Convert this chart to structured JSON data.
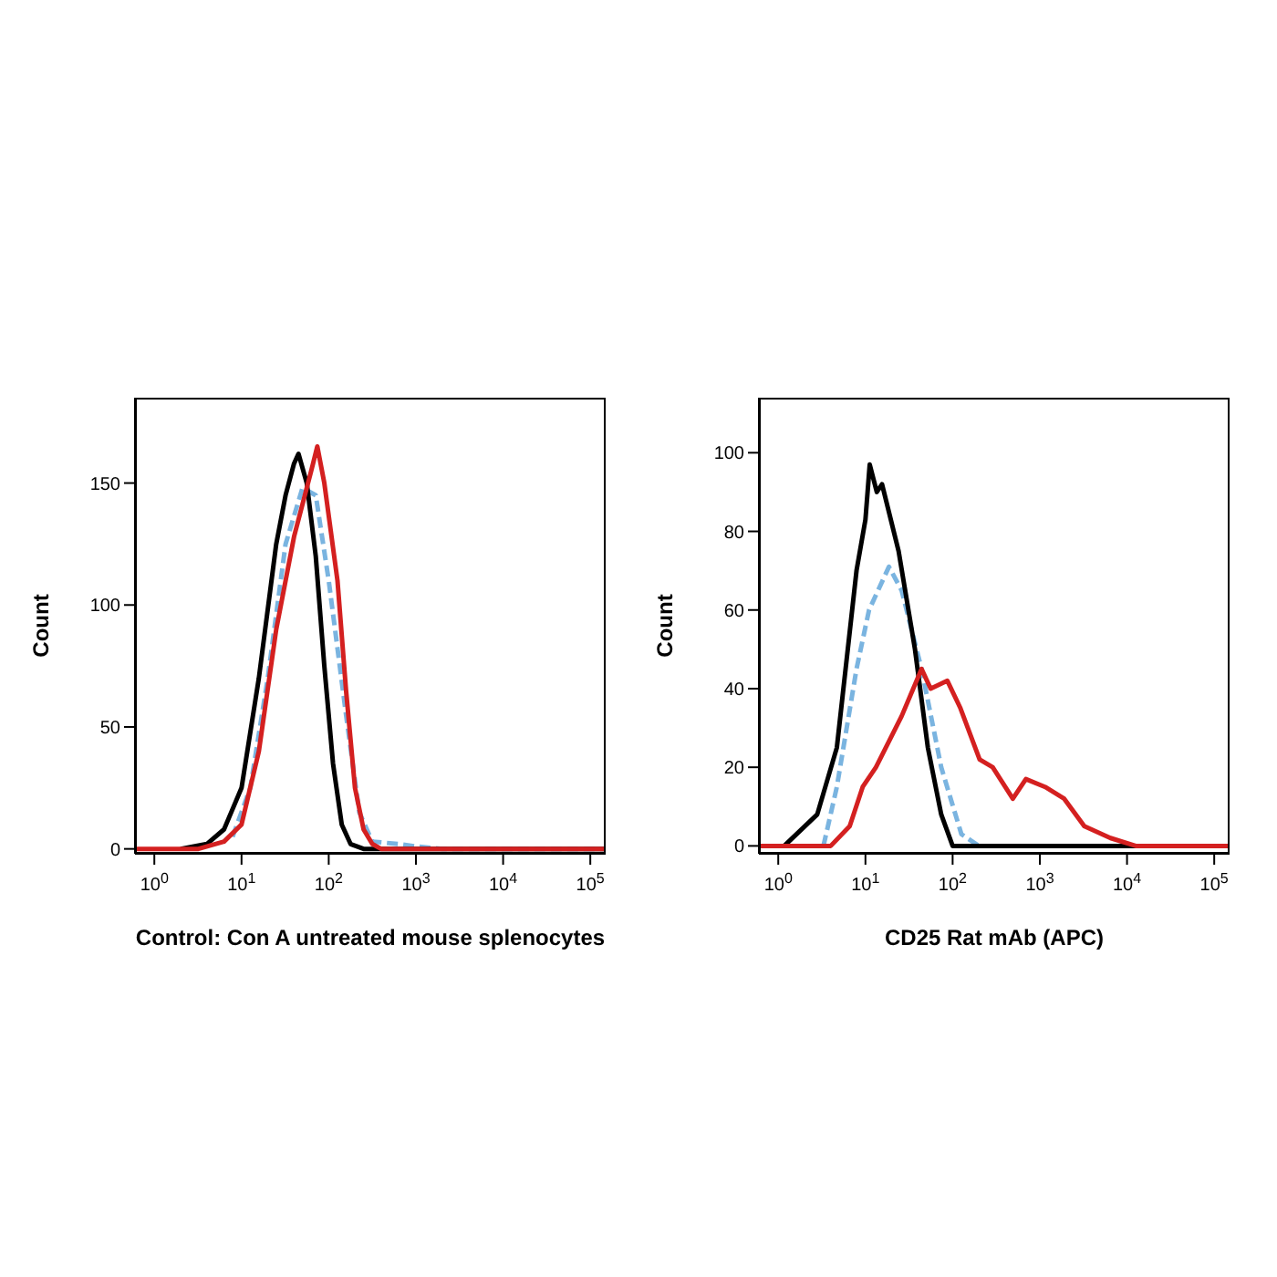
{
  "chart_data": [
    {
      "type": "line",
      "xlabel": "Control: Con A untreated mouse splenocytes",
      "ylabel": "Count",
      "log": "x",
      "marker": "none",
      "xlim": [
        0.6,
        150000
      ],
      "xticks": [
        {
          "value": 1,
          "label": "10$^{0}$"
        },
        {
          "value": 10,
          "label": "10$^{1}$"
        },
        {
          "value": 100,
          "label": "10$^{2}$"
        },
        {
          "value": 1000,
          "label": "10$^{3}$"
        },
        {
          "value": 10000,
          "label": "10$^{4}$"
        },
        {
          "value": 100000,
          "label": "10$^{5}$"
        }
      ],
      "ylim": [
        -2,
        185
      ],
      "yticks": [
        0,
        50,
        100,
        150
      ],
      "series": [
        {
          "color": "#7ab4e0",
          "line_style": "dashed",
          "x": [
            7.9,
            12.6,
            20,
            32,
            50,
            71,
            100,
            158,
            224,
            316,
            631,
            1000,
            1995,
            148000
          ],
          "values": [
            5,
            25,
            70,
            125,
            148,
            145,
            110,
            55,
            15,
            3,
            2,
            1,
            0,
            0
          ]
        },
        {
          "color": "#000000",
          "line_style": "solid",
          "x": [
            2,
            4,
            6.3,
            10,
            15.8,
            25,
            32,
            40,
            45,
            56,
            71,
            89,
            112,
            141,
            178,
            251,
            148000
          ],
          "values": [
            0,
            2,
            8,
            25,
            70,
            125,
            145,
            158,
            162,
            150,
            120,
            75,
            35,
            10,
            2,
            0,
            0
          ]
        },
        {
          "color": "#d42020",
          "line_style": "solid",
          "x": [
            0.6,
            3.2,
            6.3,
            10,
            15.8,
            25,
            40,
            63,
            74,
            89,
            126,
            158,
            200,
            251,
            316,
            398,
            148000
          ],
          "values": [
            0,
            0,
            3,
            10,
            40,
            90,
            128,
            155,
            165,
            150,
            110,
            65,
            25,
            8,
            2,
            0,
            0
          ]
        }
      ]
    },
    {
      "type": "line",
      "xlabel": "CD25 Rat mAb (APC)",
      "ylabel": "Count",
      "log": "x",
      "marker": "none",
      "xlim": [
        0.6,
        150000
      ],
      "xticks": [
        {
          "value": 1,
          "label": "10$^{0}$"
        },
        {
          "value": 10,
          "label": "10$^{1}$"
        },
        {
          "value": 100,
          "label": "10$^{2}$"
        },
        {
          "value": 1000,
          "label": "10$^{3}$"
        },
        {
          "value": 10000,
          "label": "10$^{4}$"
        },
        {
          "value": 100000,
          "label": "10$^{5}$"
        }
      ],
      "ylim": [
        -2,
        114
      ],
      "yticks": [
        0,
        20,
        40,
        60,
        80,
        100
      ],
      "series": [
        {
          "color": "#7ab4e0",
          "line_style": "dashed",
          "x": [
            3.3,
            4.7,
            7.9,
            11,
            18.6,
            26,
            44,
            74,
            126,
            200,
            148000
          ],
          "values": [
            0,
            15,
            45,
            60,
            71,
            65,
            45,
            20,
            3,
            0,
            0
          ]
        },
        {
          "color": "#000000",
          "line_style": "solid",
          "x": [
            0.6,
            1.17,
            2.8,
            4.7,
            7.9,
            10,
            11.2,
            13.5,
            15.5,
            24,
            37,
            52,
            74,
            100,
            148000
          ],
          "values": [
            0,
            0,
            8,
            25,
            70,
            83,
            97,
            90,
            92,
            75,
            50,
            25,
            8,
            0,
            0
          ]
        },
        {
          "color": "#d42020",
          "line_style": "solid",
          "x": [
            0.6,
            4,
            6.6,
            9.3,
            13.2,
            26,
            44,
            56,
            87,
            123,
            204,
            288,
            490,
            692,
            1148,
            1905,
            3236,
            6457,
            12589,
            148000
          ],
          "values": [
            0,
            0,
            5,
            15,
            20,
            33,
            45,
            40,
            42,
            35,
            22,
            20,
            12,
            17,
            15,
            12,
            5,
            2,
            0,
            0
          ]
        }
      ]
    }
  ]
}
